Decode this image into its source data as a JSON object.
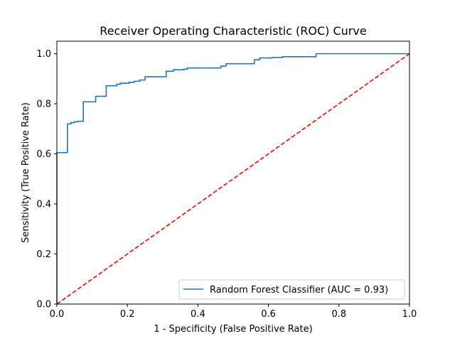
{
  "chart_data": {
    "type": "line",
    "title": "Receiver Operating Characteristic (ROC) Curve",
    "xlabel": "1 - Specificity (False Positive Rate)",
    "ylabel": "Sensitivity (True Positive Rate)",
    "xlim": [
      0.0,
      1.0
    ],
    "ylim": [
      0.0,
      1.05
    ],
    "xticks": [
      "0.0",
      "0.2",
      "0.4",
      "0.6",
      "0.8",
      "1.0"
    ],
    "yticks": [
      "0.0",
      "0.2",
      "0.4",
      "0.6",
      "0.8",
      "1.0"
    ],
    "grid": false,
    "legend_position": "lower-right",
    "series": [
      {
        "name": "Random Forest Classifier (AUC = 0.93)",
        "color": "#1f77b4",
        "style": "solid",
        "step": true,
        "x": [
          0.0,
          0.0,
          0.03,
          0.03,
          0.04,
          0.04,
          0.05,
          0.05,
          0.06,
          0.06,
          0.075,
          0.075,
          0.11,
          0.11,
          0.14,
          0.14,
          0.17,
          0.17,
          0.18,
          0.18,
          0.205,
          0.205,
          0.22,
          0.22,
          0.235,
          0.235,
          0.25,
          0.25,
          0.31,
          0.31,
          0.33,
          0.33,
          0.36,
          0.36,
          0.37,
          0.37,
          0.465,
          0.465,
          0.48,
          0.48,
          0.56,
          0.56,
          0.575,
          0.575,
          0.61,
          0.61,
          0.64,
          0.64,
          0.735,
          0.735,
          1.0
        ],
        "y": [
          0.0,
          0.605,
          0.605,
          0.72,
          0.72,
          0.725,
          0.725,
          0.728,
          0.728,
          0.73,
          0.73,
          0.808,
          0.808,
          0.83,
          0.83,
          0.872,
          0.872,
          0.878,
          0.878,
          0.882,
          0.882,
          0.886,
          0.886,
          0.89,
          0.89,
          0.895,
          0.895,
          0.908,
          0.908,
          0.93,
          0.93,
          0.936,
          0.936,
          0.938,
          0.938,
          0.943,
          0.943,
          0.951,
          0.951,
          0.96,
          0.96,
          0.976,
          0.976,
          0.983,
          0.983,
          0.985,
          0.985,
          0.988,
          0.988,
          1.0,
          1.0
        ]
      },
      {
        "name": "",
        "color": "#ff0000",
        "style": "dashed",
        "step": false,
        "x": [
          0.0,
          1.0
        ],
        "y": [
          0.0,
          1.0
        ]
      }
    ]
  }
}
